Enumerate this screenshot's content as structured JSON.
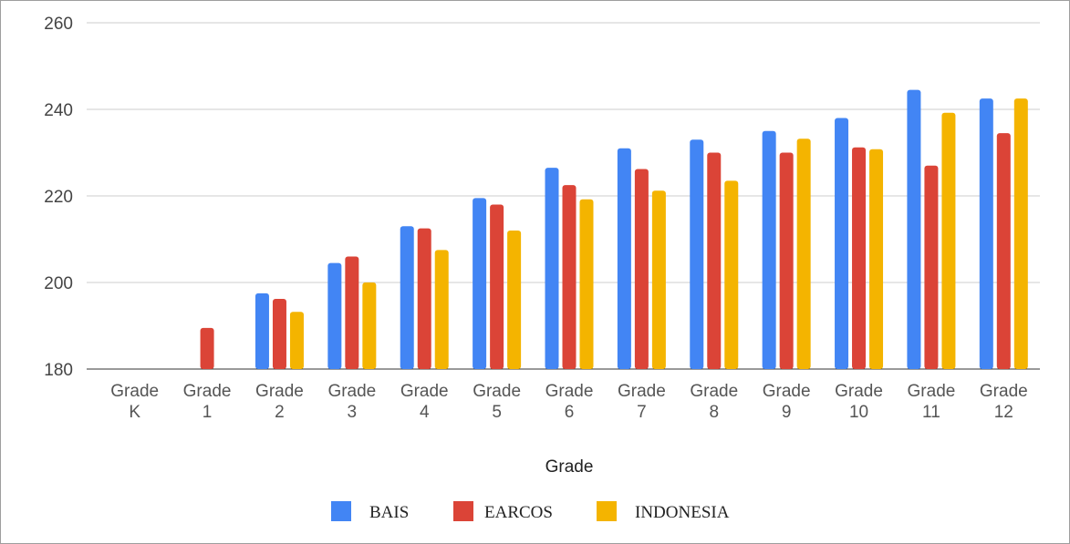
{
  "chart_data": {
    "type": "bar",
    "xlabel": "Grade",
    "ylabel": "",
    "ylim": [
      180,
      260
    ],
    "yticks": [
      180,
      200,
      220,
      240,
      260
    ],
    "grid": true,
    "legend_position": "bottom",
    "categories": [
      [
        "Grade",
        "K"
      ],
      [
        "Grade",
        "1"
      ],
      [
        "Grade",
        "2"
      ],
      [
        "Grade",
        "3"
      ],
      [
        "Grade",
        "4"
      ],
      [
        "Grade",
        "5"
      ],
      [
        "Grade",
        "6"
      ],
      [
        "Grade",
        "7"
      ],
      [
        "Grade",
        "8"
      ],
      [
        "Grade",
        "9"
      ],
      [
        "Grade",
        "10"
      ],
      [
        "Grade",
        "11"
      ],
      [
        "Grade",
        "12"
      ]
    ],
    "series": [
      {
        "name": "BAIS",
        "color": "#4285f4",
        "values": [
          null,
          null,
          197.5,
          204.5,
          213,
          219.5,
          226.5,
          231,
          233,
          235,
          238,
          244.5,
          242.5
        ]
      },
      {
        "name": "EARCOS",
        "color": "#db4437",
        "values": [
          null,
          189.5,
          196.2,
          206,
          212.5,
          218,
          222.5,
          226.2,
          230,
          230,
          231.2,
          227,
          234.5
        ]
      },
      {
        "name": "INDONESIA",
        "color": "#f4b400",
        "values": [
          null,
          null,
          193.2,
          200,
          207.5,
          212,
          219.2,
          221.2,
          223.5,
          233.2,
          230.8,
          239.2,
          242.5
        ]
      }
    ]
  }
}
